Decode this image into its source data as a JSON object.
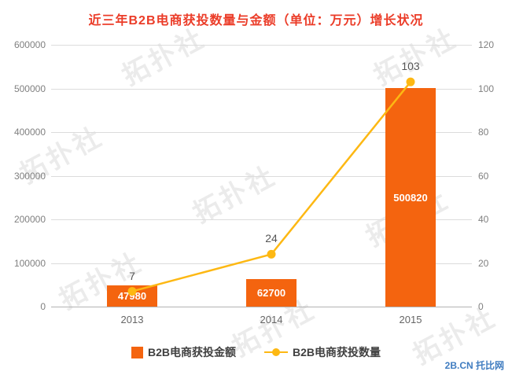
{
  "title": "近三年B2B电商获投数量与金额（单位：万元）增长状况",
  "title_color": "#eb3c28",
  "watermark": "拓扑社",
  "footer": {
    "brand": "2B.CN 托比网"
  },
  "chart_data": {
    "type": "bar",
    "subtype": "combo-bar-line",
    "title": "近三年B2B电商获投数量与金额（单位：万元）增长状况",
    "categories": [
      "2013",
      "2014",
      "2015"
    ],
    "series": [
      {
        "name": "B2B电商获投金额",
        "type": "bar",
        "axis": "left",
        "values": [
          47980,
          62700,
          500820
        ],
        "color": "#f4640f"
      },
      {
        "name": "B2B电商获投数量",
        "type": "line",
        "axis": "right",
        "values": [
          7,
          24,
          103
        ],
        "color": "#fdb813"
      }
    ],
    "left_axis": {
      "min": 0,
      "max": 600000,
      "step": 100000
    },
    "right_axis": {
      "min": 0,
      "max": 120,
      "step": 20
    },
    "left_ticks": [
      "0",
      "100000",
      "200000",
      "300000",
      "400000",
      "500000",
      "600000"
    ],
    "right_ticks": [
      "0",
      "20",
      "40",
      "60",
      "80",
      "100",
      "120"
    ],
    "grid": true,
    "legend_position": "bottom"
  }
}
